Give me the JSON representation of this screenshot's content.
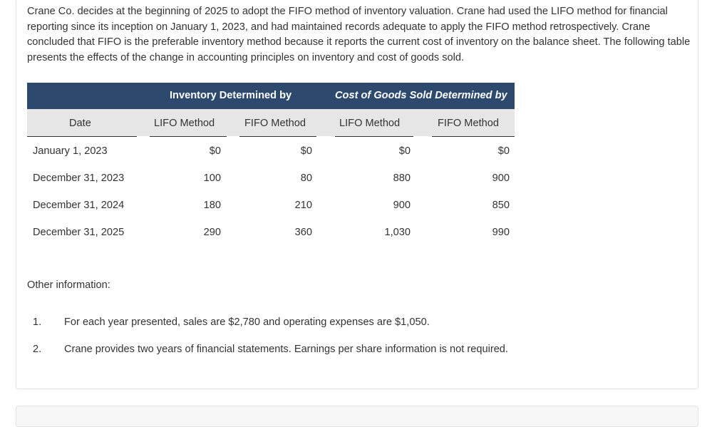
{
  "intro_text": "Crane Co. decides at the beginning of 2025 to adopt the FIFO method of inventory valuation. Crane had used the LIFO method for financial reporting since its inception on January 1, 2023, and had maintained records adequate to apply the FIFO method retrospectively. Crane concluded that FIFO is the preferable inventory method because it reports the current cost of inventory on the balance sheet. The following table presents the effects of the change in accounting principles on inventory and cost of goods sold.",
  "table": {
    "group_headers": {
      "inventory": "Inventory Determined by",
      "cogs": "Cost of Goods Sold Determined by"
    },
    "columns": {
      "date": "Date",
      "inv_lifo": "LIFO Method",
      "inv_fifo": "FIFO Method",
      "cogs_lifo": "LIFO Method",
      "cogs_fifo": "FIFO Method"
    },
    "rows": [
      {
        "date": "January 1, 2023",
        "inv_lifo": "$0",
        "inv_fifo": "$0",
        "cogs_lifo": "$0",
        "cogs_fifo": "$0"
      },
      {
        "date": "December 31, 2023",
        "inv_lifo": "100",
        "inv_fifo": "80",
        "cogs_lifo": "880",
        "cogs_fifo": "900"
      },
      {
        "date": "December 31, 2024",
        "inv_lifo": "180",
        "inv_fifo": "210",
        "cogs_lifo": "900",
        "cogs_fifo": "850"
      },
      {
        "date": "December 31, 2025",
        "inv_lifo": "290",
        "inv_fifo": "360",
        "cogs_lifo": "1,030",
        "cogs_fifo": "990"
      }
    ]
  },
  "other_info": {
    "heading": "Other information:",
    "items": [
      {
        "num": "1.",
        "text": "For each year presented, sales are $2,780 and operating expenses are $1,050."
      },
      {
        "num": "2.",
        "text": "Crane provides two years of financial statements. Earnings per share information is not required."
      }
    ]
  },
  "colors": {
    "header_bg": "#2d4a6e",
    "subheader_bg": "#e6e6e6"
  }
}
